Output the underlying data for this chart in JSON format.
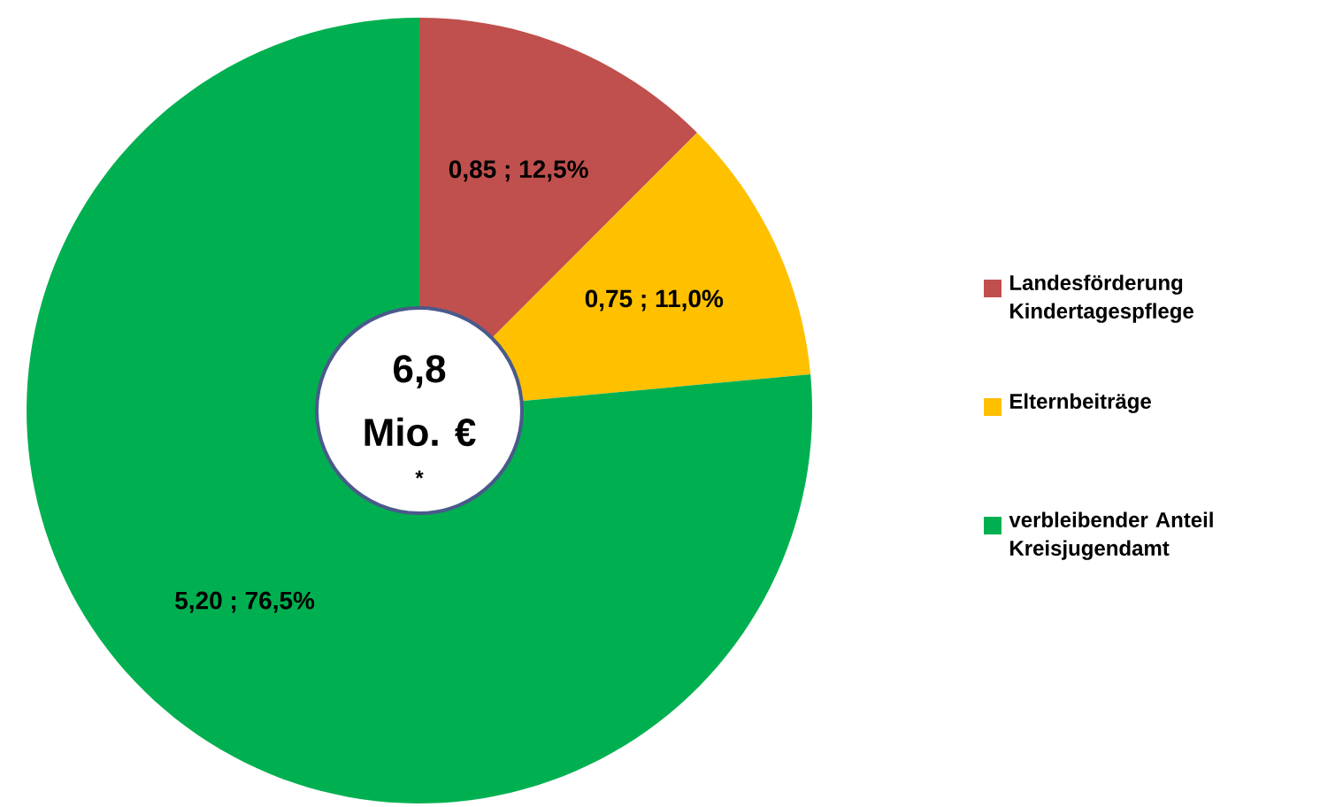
{
  "chart_data": {
    "type": "donut",
    "categories": [
      "Landesförderung Kindertagespflege",
      "Elternbeiträge",
      "verbleibender Anteil Kreisjugendamt"
    ],
    "values": [
      0.85,
      0.75,
      5.2
    ],
    "colors": [
      "#c0504d",
      "#ffc000",
      "#00b050"
    ],
    "value_labels": [
      "0,85 ; 12,5%",
      "0,75 ; 11,0%",
      "5,20 ; 76,5%"
    ],
    "annotations": [
      "6,8",
      "Mio. €",
      "*"
    ],
    "legend": "right"
  }
}
